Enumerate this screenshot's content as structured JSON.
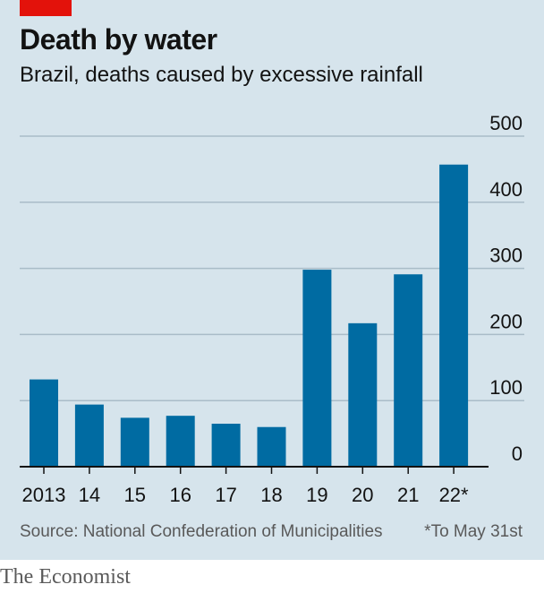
{
  "header": {
    "title": "Death by water",
    "subtitle": "Brazil, deaths caused by excessive rainfall"
  },
  "footer": {
    "source": "Source: National Confederation of Municipalities",
    "note": "*To May 31st",
    "brand": "The Economist"
  },
  "colors": {
    "bar": "#006ba2",
    "background": "#d6e4ec",
    "gridline": "#a9bcc8",
    "baseline": "#121212",
    "accent": "#e3120b"
  },
  "chart_data": {
    "type": "bar",
    "title": "Death by water",
    "subtitle": "Brazil, deaths caused by excessive rainfall",
    "xlabel": "",
    "ylabel": "",
    "categories": [
      "2013",
      "14",
      "15",
      "16",
      "17",
      "18",
      "19",
      "20",
      "21",
      "22*"
    ],
    "values": [
      132,
      94,
      74,
      77,
      65,
      60,
      298,
      217,
      291,
      457
    ],
    "ylim": [
      0,
      500
    ],
    "yticks": [
      0,
      100,
      200,
      300,
      400,
      500
    ],
    "y_axis_side": "right",
    "grid": true,
    "legend": "none"
  }
}
